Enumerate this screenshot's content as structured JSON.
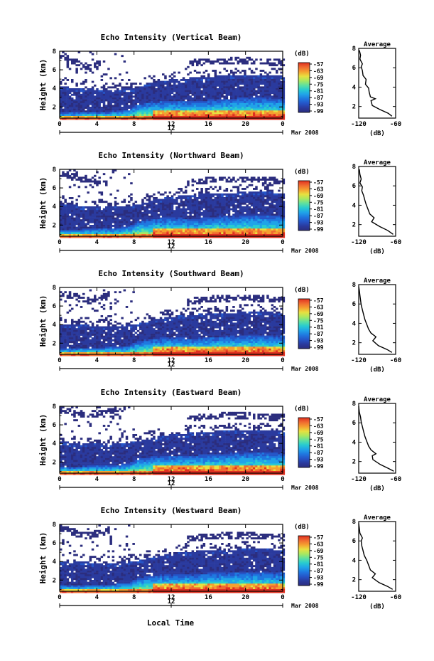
{
  "figure": {
    "xlabel": "Local Time",
    "date_label": "Mar 2008",
    "date_mid_tick": "12",
    "colorbar_unit": "(dB)",
    "average_title": "Average",
    "average_xlabel": "(dB)"
  },
  "colors": {
    "scale": [
      "#2b2d7e",
      "#2a3a9e",
      "#2555c8",
      "#1f78e0",
      "#20a4e8",
      "#28cbd0",
      "#5ee0a0",
      "#a9e860",
      "#e8e040",
      "#f5a030",
      "#f06a30",
      "#e03020"
    ]
  },
  "chart_data": [
    {
      "type": "heatmap",
      "name": "vertical",
      "title": "Echo Intensity (Vertical Beam)",
      "ylabel": "Height (km)",
      "xlim": [
        0,
        24
      ],
      "ylim": [
        0.8,
        8
      ],
      "xticks": [
        "0",
        "4",
        "8",
        "12",
        "16",
        "20",
        "0"
      ],
      "yticks": [
        "2",
        "4",
        "6",
        "8"
      ],
      "colorbar": {
        "min": -99,
        "max": -57,
        "ticks": [
          "-57",
          "-63",
          "-69",
          "-75",
          "-81",
          "-87",
          "-93",
          "-99"
        ]
      },
      "average": {
        "xlim": [
          -120,
          -60
        ],
        "xticks": [
          "-120",
          "-60"
        ],
        "yticks": [
          "2",
          "4",
          "6",
          "8"
        ],
        "profile": [
          [
            -66,
            1.0
          ],
          [
            -72,
            1.3
          ],
          [
            -86,
            1.7
          ],
          [
            -98,
            2.1
          ],
          [
            -100,
            2.6
          ],
          [
            -93,
            2.8
          ],
          [
            -101,
            3.0
          ],
          [
            -103,
            3.5
          ],
          [
            -104,
            3.9
          ],
          [
            -109,
            4.3
          ],
          [
            -108,
            4.8
          ],
          [
            -113,
            5.2
          ],
          [
            -114,
            5.7
          ],
          [
            -116,
            6.1
          ],
          [
            -114,
            6.4
          ],
          [
            -118,
            6.9
          ],
          [
            -117,
            7.3
          ],
          [
            -119,
            7.8
          ]
        ]
      },
      "data": {
        "low_layer_top": [
          1.5,
          1.5,
          1.5,
          1.6,
          1.6,
          1.6,
          1.7,
          1.8,
          2.4,
          2.6,
          2.7,
          2.8,
          2.8,
          2.7,
          2.7,
          2.8,
          2.9,
          3.0,
          3.0,
          3.1,
          3.1,
          3.1,
          3.0,
          3.0
        ],
        "cloud_top": [
          4.3,
          4.2,
          4.1,
          4.1,
          4.0,
          4.0,
          4.0,
          4.1,
          4.2,
          4.6,
          4.8,
          5.0,
          5.1,
          5.2,
          5.3,
          5.4,
          5.4,
          5.5,
          5.5,
          5.6,
          5.6,
          5.6,
          5.5,
          5.4
        ],
        "upper_patch": [
          7.5,
          7.2,
          6.8,
          6.3,
          6.8,
          0,
          0,
          0,
          0,
          0,
          0,
          0,
          0,
          6.7,
          6.9,
          7.0,
          7.0,
          7.0,
          7.1,
          7.1,
          7.0,
          7.0,
          6.9,
          6.9
        ]
      }
    },
    {
      "type": "heatmap",
      "name": "northward",
      "title": "Echo Intensity (Northward Beam)",
      "ylabel": "Height (km)",
      "xlim": [
        0,
        24
      ],
      "ylim": [
        0.8,
        8
      ],
      "xticks": [
        "0",
        "4",
        "8",
        "12",
        "16",
        "20",
        "0"
      ],
      "yticks": [
        "2",
        "4",
        "6",
        "8"
      ],
      "colorbar": {
        "min": -99,
        "max": -57,
        "ticks": [
          "-57",
          "-63",
          "-69",
          "-75",
          "-81",
          "-87",
          "-93",
          "-99"
        ]
      },
      "average": {
        "xlim": [
          -120,
          -60
        ],
        "xticks": [
          "-120",
          "-60"
        ],
        "yticks": [
          "2",
          "4",
          "6",
          "8"
        ],
        "profile": [
          [
            -64,
            1.0
          ],
          [
            -73,
            1.4
          ],
          [
            -86,
            1.8
          ],
          [
            -99,
            2.3
          ],
          [
            -95,
            2.7
          ],
          [
            -102,
            3.1
          ],
          [
            -105,
            3.6
          ],
          [
            -108,
            4.1
          ],
          [
            -110,
            4.5
          ],
          [
            -112,
            5.0
          ],
          [
            -115,
            5.5
          ],
          [
            -114,
            5.9
          ],
          [
            -118,
            6.3
          ],
          [
            -116,
            6.7
          ],
          [
            -118,
            7.2
          ],
          [
            -119,
            7.7
          ]
        ]
      },
      "data": {
        "low_layer_top": [
          1.6,
          1.6,
          1.6,
          1.7,
          1.7,
          1.7,
          1.8,
          1.9,
          2.5,
          2.7,
          2.8,
          2.9,
          2.9,
          2.8,
          2.8,
          2.9,
          3.0,
          3.1,
          3.1,
          3.2,
          3.2,
          3.2,
          3.1,
          3.0
        ],
        "cloud_top": [
          4.4,
          4.3,
          4.2,
          4.2,
          4.1,
          4.1,
          4.1,
          4.2,
          4.3,
          4.7,
          4.9,
          5.1,
          5.2,
          5.3,
          5.4,
          5.5,
          5.5,
          5.6,
          5.6,
          5.7,
          5.7,
          5.7,
          5.6,
          5.5
        ],
        "upper_patch": [
          7.6,
          7.4,
          7.2,
          7.0,
          6.9,
          0,
          0,
          0,
          0,
          0,
          0,
          0,
          0,
          6.6,
          6.8,
          6.9,
          7.0,
          7.0,
          7.0,
          7.0,
          7.0,
          6.9,
          6.9,
          6.8
        ]
      }
    },
    {
      "type": "heatmap",
      "name": "southward",
      "title": "Echo Intensity (Southward Beam)",
      "ylabel": "Height (km)",
      "xlim": [
        0,
        24
      ],
      "ylim": [
        0.8,
        8
      ],
      "xticks": [
        "0",
        "4",
        "8",
        "12",
        "16",
        "20",
        "0"
      ],
      "yticks": [
        "2",
        "4",
        "6",
        "8"
      ],
      "colorbar": {
        "min": -99,
        "max": -57,
        "ticks": [
          "-57",
          "-63",
          "-69",
          "-75",
          "-81",
          "-87",
          "-93",
          "-99"
        ]
      },
      "average": {
        "xlim": [
          -120,
          -60
        ],
        "xticks": [
          "-120",
          "-60"
        ],
        "yticks": [
          "2",
          "4",
          "6",
          "8"
        ],
        "profile": [
          [
            -66,
            1.0
          ],
          [
            -74,
            1.3
          ],
          [
            -88,
            1.7
          ],
          [
            -97,
            2.2
          ],
          [
            -92,
            2.6
          ],
          [
            -100,
            3.0
          ],
          [
            -104,
            3.4
          ],
          [
            -107,
            3.9
          ],
          [
            -110,
            4.4
          ],
          [
            -112,
            4.9
          ],
          [
            -114,
            5.4
          ],
          [
            -116,
            5.9
          ],
          [
            -117,
            6.4
          ],
          [
            -118,
            6.9
          ],
          [
            -119,
            7.4
          ],
          [
            -120,
            7.8
          ]
        ]
      },
      "data": {
        "low_layer_top": [
          1.5,
          1.5,
          1.6,
          1.6,
          1.6,
          1.7,
          1.7,
          1.8,
          2.3,
          2.5,
          2.6,
          2.7,
          2.7,
          2.6,
          2.6,
          2.7,
          2.8,
          2.9,
          2.9,
          3.0,
          3.0,
          3.0,
          2.9,
          2.9
        ],
        "cloud_top": [
          4.2,
          4.1,
          4.1,
          4.0,
          4.0,
          3.9,
          4.0,
          4.1,
          4.2,
          4.5,
          4.7,
          4.9,
          5.0,
          5.1,
          5.2,
          5.3,
          5.3,
          5.4,
          5.4,
          5.5,
          5.5,
          5.5,
          5.4,
          5.3
        ],
        "upper_patch": [
          7.4,
          7.3,
          7.0,
          6.6,
          7.0,
          7.2,
          0,
          0,
          0,
          0,
          0,
          0,
          0,
          6.5,
          6.7,
          6.8,
          6.9,
          6.9,
          7.0,
          7.0,
          6.9,
          6.9,
          6.8,
          6.8
        ]
      }
    },
    {
      "type": "heatmap",
      "name": "eastward",
      "title": "Echo Intensity (Eastward Beam)",
      "ylabel": "Height (km)",
      "xlim": [
        0,
        24
      ],
      "ylim": [
        0.8,
        8
      ],
      "xticks": [
        "0",
        "4",
        "8",
        "12",
        "16",
        "20",
        "0"
      ],
      "yticks": [
        "2",
        "4",
        "6",
        "8"
      ],
      "colorbar": {
        "min": -99,
        "max": -57,
        "ticks": [
          "-57",
          "-63",
          "-69",
          "-75",
          "-81",
          "-87",
          "-93",
          "-99"
        ]
      },
      "average": {
        "xlim": [
          -120,
          -60
        ],
        "xticks": [
          "-120",
          "-60"
        ],
        "yticks": [
          "2",
          "4",
          "6",
          "8"
        ],
        "profile": [
          [
            -63,
            1.0
          ],
          [
            -72,
            1.3
          ],
          [
            -85,
            1.7
          ],
          [
            -97,
            2.2
          ],
          [
            -98,
            2.6
          ],
          [
            -92,
            2.8
          ],
          [
            -100,
            3.2
          ],
          [
            -104,
            3.6
          ],
          [
            -107,
            4.1
          ],
          [
            -110,
            4.6
          ],
          [
            -112,
            5.1
          ],
          [
            -114,
            5.6
          ],
          [
            -116,
            6.1
          ],
          [
            -117,
            6.6
          ],
          [
            -119,
            7.1
          ],
          [
            -120,
            7.7
          ]
        ]
      },
      "data": {
        "low_layer_top": [
          1.6,
          1.6,
          1.6,
          1.7,
          1.7,
          1.7,
          1.8,
          1.9,
          2.4,
          2.6,
          2.7,
          2.8,
          2.8,
          2.8,
          2.8,
          2.9,
          3.0,
          3.0,
          3.1,
          3.1,
          3.2,
          3.2,
          3.1,
          3.0
        ],
        "cloud_top": [
          4.3,
          4.2,
          4.2,
          4.1,
          4.1,
          4.0,
          4.1,
          4.2,
          4.3,
          4.6,
          4.8,
          5.0,
          5.1,
          5.2,
          5.3,
          5.4,
          5.4,
          5.5,
          5.5,
          5.6,
          5.6,
          5.6,
          5.5,
          5.4
        ],
        "upper_patch": [
          7.7,
          7.5,
          7.3,
          7.2,
          7.4,
          7.6,
          7.5,
          0,
          0,
          0,
          0,
          0,
          0,
          6.7,
          6.9,
          7.0,
          7.0,
          7.1,
          7.1,
          7.1,
          7.0,
          7.0,
          6.9,
          6.9
        ]
      }
    },
    {
      "type": "heatmap",
      "name": "westward",
      "title": "Echo Intensity (Westward Beam)",
      "ylabel": "Height (km)",
      "xlim": [
        0,
        24
      ],
      "ylim": [
        0.8,
        8
      ],
      "xticks": [
        "0",
        "4",
        "8",
        "12",
        "16",
        "20",
        "0"
      ],
      "yticks": [
        "2",
        "4",
        "6",
        "8"
      ],
      "colorbar": {
        "min": -99,
        "max": -57,
        "ticks": [
          "-57",
          "-63",
          "-69",
          "-75",
          "-81",
          "-87",
          "-93",
          "-99"
        ]
      },
      "average": {
        "xlim": [
          -120,
          -60
        ],
        "xticks": [
          "-120",
          "-60"
        ],
        "yticks": [
          "2",
          "4",
          "6",
          "8"
        ],
        "profile": [
          [
            -65,
            1.0
          ],
          [
            -73,
            1.3
          ],
          [
            -87,
            1.7
          ],
          [
            -98,
            2.2
          ],
          [
            -93,
            2.6
          ],
          [
            -101,
            3.0
          ],
          [
            -104,
            3.5
          ],
          [
            -107,
            4.0
          ],
          [
            -111,
            4.5
          ],
          [
            -113,
            5.0
          ],
          [
            -115,
            5.5
          ],
          [
            -116,
            6.0
          ],
          [
            -114,
            6.3
          ],
          [
            -118,
            6.8
          ],
          [
            -119,
            7.3
          ],
          [
            -120,
            7.8
          ]
        ]
      },
      "data": {
        "low_layer_top": [
          1.5,
          1.5,
          1.5,
          1.6,
          1.6,
          1.6,
          1.7,
          1.8,
          2.3,
          2.5,
          2.6,
          2.7,
          2.7,
          2.7,
          2.7,
          2.8,
          2.9,
          2.9,
          3.0,
          3.0,
          3.0,
          3.0,
          2.9,
          2.9
        ],
        "cloud_top": [
          4.2,
          4.1,
          4.1,
          4.0,
          4.0,
          4.0,
          4.0,
          4.1,
          4.2,
          4.5,
          4.7,
          4.9,
          5.0,
          5.1,
          5.2,
          5.3,
          5.3,
          5.4,
          5.4,
          5.5,
          5.5,
          5.5,
          5.4,
          5.3
        ],
        "upper_patch": [
          7.7,
          7.4,
          7.0,
          6.9,
          7.2,
          7.5,
          0,
          0,
          0,
          0,
          0,
          0,
          0,
          6.5,
          6.7,
          6.8,
          6.8,
          6.9,
          6.9,
          6.9,
          6.9,
          6.8,
          6.8,
          6.7
        ]
      }
    }
  ]
}
